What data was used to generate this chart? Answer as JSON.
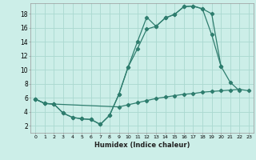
{
  "xlabel": "Humidex (Indice chaleur)",
  "line_color": "#2e7d6e",
  "background_color": "#cceee8",
  "grid_color": "#aad8d0",
  "xlim": [
    -0.5,
    23.5
  ],
  "ylim": [
    1,
    19.5
  ],
  "yticks": [
    2,
    4,
    6,
    8,
    10,
    12,
    14,
    16,
    18
  ],
  "xticks": [
    0,
    1,
    2,
    3,
    4,
    5,
    6,
    7,
    8,
    9,
    10,
    11,
    12,
    13,
    14,
    15,
    16,
    17,
    18,
    19,
    20,
    21,
    22,
    23
  ],
  "line1_x": [
    0,
    1,
    2,
    3,
    4,
    5,
    6,
    7,
    8,
    9,
    10,
    11,
    12,
    13,
    14,
    15,
    16,
    17,
    18,
    19,
    20
  ],
  "line1_y": [
    5.8,
    5.2,
    5.1,
    3.8,
    3.2,
    3.0,
    2.9,
    2.2,
    3.5,
    6.5,
    10.4,
    14.0,
    17.5,
    16.2,
    17.4,
    17.9,
    19.0,
    19.1,
    18.7,
    18.0,
    10.5
  ],
  "line2_x": [
    0,
    1,
    2,
    3,
    4,
    5,
    6,
    7,
    8,
    9,
    10,
    11,
    12,
    13,
    14,
    15,
    16,
    17,
    18,
    19,
    20,
    21,
    22
  ],
  "line2_y": [
    5.8,
    5.2,
    5.1,
    3.8,
    3.2,
    3.0,
    2.9,
    2.2,
    3.5,
    6.5,
    10.4,
    13.0,
    15.8,
    16.2,
    17.4,
    17.9,
    19.0,
    19.1,
    18.7,
    15.0,
    10.5,
    8.2,
    7.0
  ],
  "line3_x": [
    0,
    1,
    2,
    9,
    10,
    11,
    12,
    13,
    14,
    15,
    16,
    17,
    18,
    19,
    20,
    21,
    22,
    23
  ],
  "line3_y": [
    5.8,
    5.2,
    5.1,
    4.7,
    5.0,
    5.3,
    5.6,
    5.9,
    6.1,
    6.3,
    6.5,
    6.6,
    6.8,
    6.9,
    7.0,
    7.1,
    7.2,
    7.0
  ]
}
